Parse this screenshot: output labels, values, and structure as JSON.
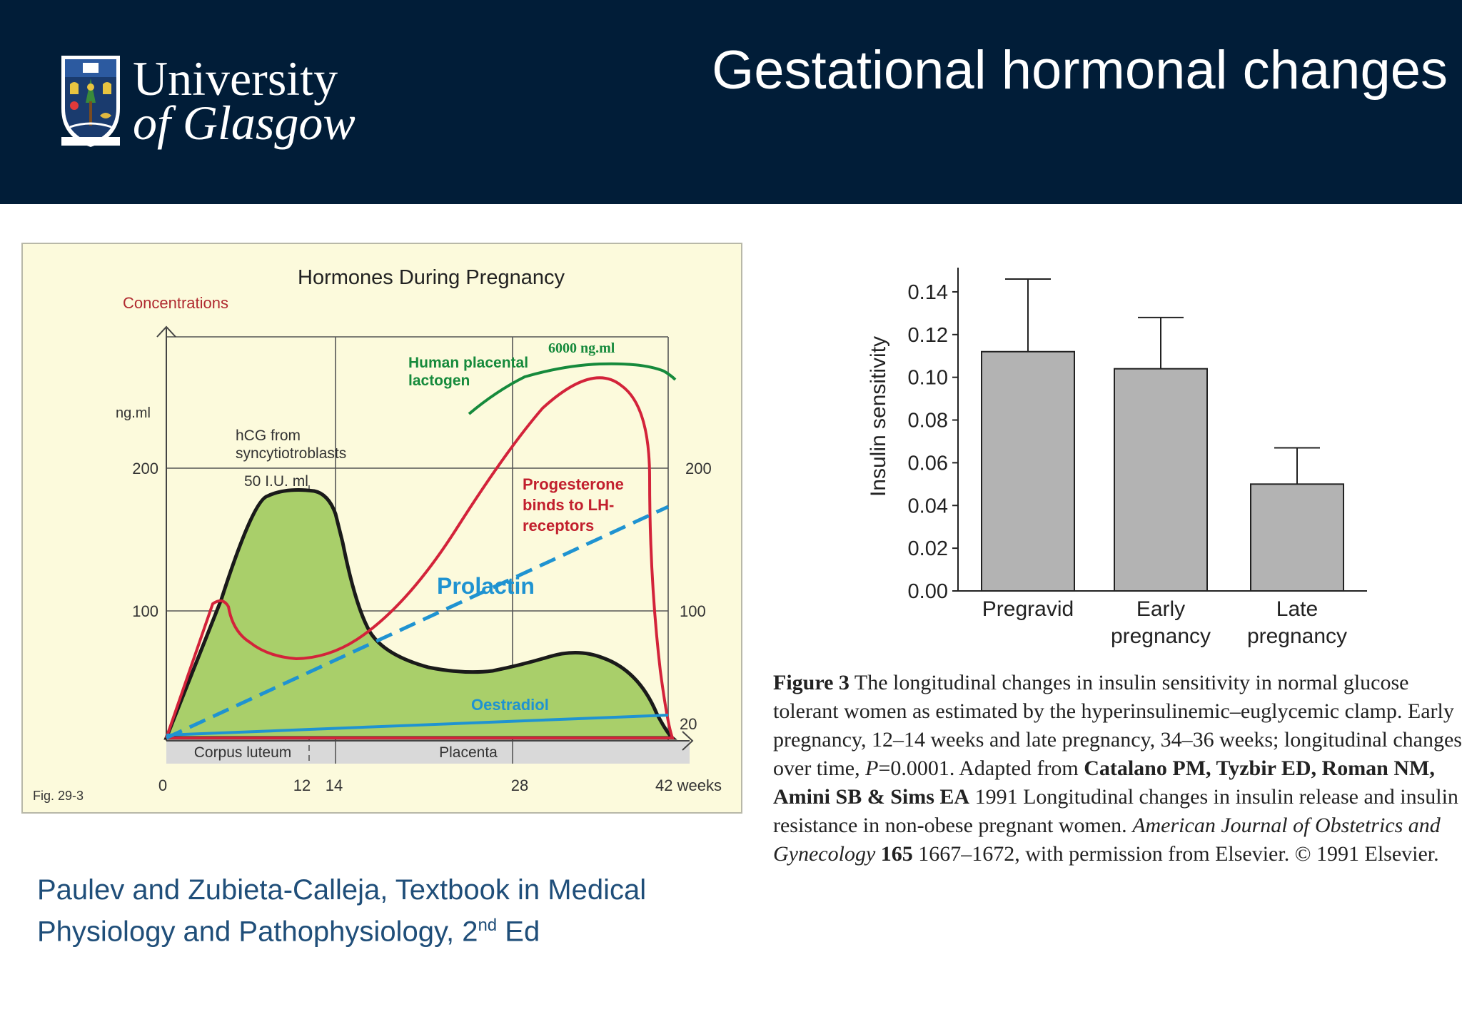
{
  "header": {
    "title": "Gestational hormonal changes",
    "logo": {
      "line1": "University",
      "line2": "of Glasgow"
    },
    "colors": {
      "background": "#011d38",
      "text": "#ffffff"
    }
  },
  "left_figure": {
    "title": "Hormones During Pregnancy",
    "y_caption": "Concentrations",
    "left_unit": "ng.ml",
    "left_ticks": [
      "200",
      "100"
    ],
    "right_ticks": [
      "200",
      "100",
      "20"
    ],
    "x_ticks": [
      "0",
      "12",
      "14",
      "28",
      "42 weeks"
    ],
    "labels": {
      "hcg_1": "hCG from",
      "hcg_2": "syncytiotroblasts",
      "hcg_peak": "50 I.U. ml",
      "hpl_1": "Human placental",
      "hpl_2": "lactogen",
      "hpl_peak": "6000 ng.ml",
      "prog_1": "Progesterone",
      "prog_2": "binds to LH-",
      "prog_3": "receptors",
      "prolactin": "Prolactin",
      "oestradiol": "Oestradiol",
      "corpus": "Corpus luteum",
      "placenta": "Placenta",
      "fig": "Fig. 29-3"
    },
    "colors": {
      "panel": "#fcfadc",
      "hcg_fill": "#a9cf6a",
      "hcg_line": "#1a1a1a",
      "progesterone": "#d3233a",
      "hpl": "#168a3c",
      "prolactin": "#1f93d1",
      "oestradiol": "#1f93d1",
      "label_red": "#c2202e",
      "label_green": "#168a3c"
    }
  },
  "chart_data": {
    "type": "bar",
    "categories": [
      "Pregravid",
      "Early pregnancy",
      "Late pregnancy"
    ],
    "category_lines": [
      [
        "Pregravid"
      ],
      [
        "Early",
        "pregnancy"
      ],
      [
        "Late",
        "pregnancy"
      ]
    ],
    "values": [
      0.112,
      0.104,
      0.05
    ],
    "error_upper": [
      0.146,
      0.128,
      0.067
    ],
    "ylabel": "Insulin sensitivity",
    "ylim": [
      0,
      0.15
    ],
    "yticks": [
      "0.00",
      "0.02",
      "0.04",
      "0.06",
      "0.08",
      "0.10",
      "0.12",
      "0.14"
    ],
    "grid": false,
    "bar_color": "#b3b3b3"
  },
  "caption": {
    "fig_label": "Figure 3",
    "text1": " The longitudinal changes in insulin sensitivity in normal glucose tolerant women as estimated by the hyperinsulinemic–euglycemic clamp. Early pregnancy, 12–14 weeks and late pregnancy, 34–36 weeks; longitudinal changes over time, ",
    "p_label": "P",
    "text2": "=0.0001. Adapted from ",
    "authors": "Catalano PM, Tyzbir ED, Roman NM, Amini SB & Sims EA",
    "text3": " 1991 Longitudinal changes in insulin release and insulin resistance in non-obese pregnant women. ",
    "journal": "American Journal of Obstetrics and Gynecology",
    "volume": " 165",
    "text4": " 1667–1672, with permission from Elsevier. © 1991 Elsevier."
  },
  "citation": {
    "line1": "Paulev and Zubieta-Calleja, Textbook in Medical",
    "line2a": "Physiology and Pathophysiology, 2",
    "sup": "nd",
    "line2b": " Ed"
  }
}
